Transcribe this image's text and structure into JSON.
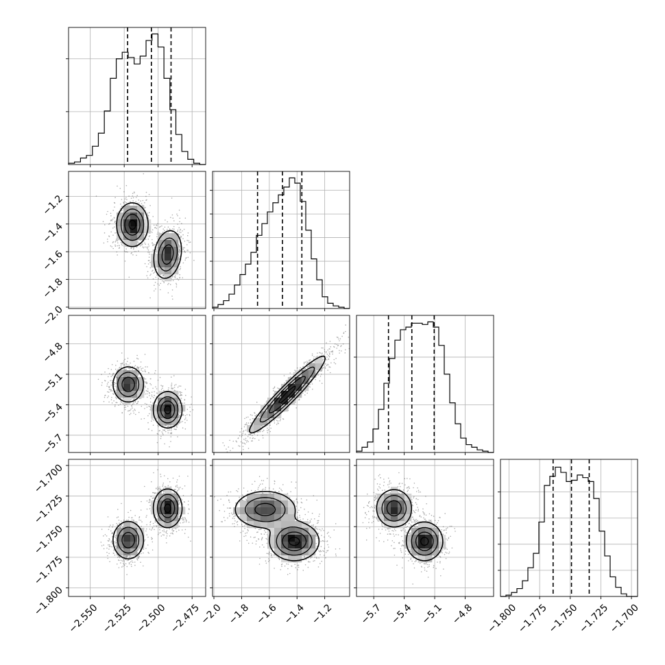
{
  "chart_data": {
    "type": "corner",
    "grid": true,
    "n_params": 4,
    "params": [
      {
        "range": [
          -2.566,
          -2.465
        ],
        "ticks": [
          -2.55,
          -2.525,
          -2.5,
          -2.475
        ],
        "tick_labels": [
          "−2.550",
          "−2.525",
          "−2.500",
          "−2.475"
        ],
        "quantiles": [
          -2.5225,
          -2.505,
          -2.4905
        ],
        "hist": [
          0.01,
          0.02,
          0.05,
          0.07,
          0.14,
          0.24,
          0.41,
          0.66,
          0.81,
          0.86,
          0.82,
          0.77,
          0.83,
          0.95,
          1.0,
          0.9,
          0.66,
          0.42,
          0.23,
          0.1,
          0.04,
          0.01,
          0.0
        ],
        "hist_y_ticks": [
          0.405,
          0.81
        ]
      },
      {
        "range": [
          -2.01,
          -1.02
        ],
        "ticks": [
          -2.0,
          -1.8,
          -1.6,
          -1.4,
          -1.2
        ],
        "tick_labels": [
          "−2.0",
          "−1.8",
          "−1.6",
          "−1.4",
          "−1.2"
        ],
        "quantiles": [
          -1.685,
          -1.505,
          -1.365
        ],
        "hist": [
          0.01,
          0.03,
          0.06,
          0.11,
          0.18,
          0.26,
          0.34,
          0.43,
          0.56,
          0.65,
          0.74,
          0.81,
          0.87,
          0.93,
          1.0,
          0.96,
          0.82,
          0.6,
          0.38,
          0.22,
          0.09,
          0.04,
          0.02,
          0.01,
          0.0
        ],
        "hist_y_ticks": [
          0.181,
          0.362,
          0.543,
          0.724,
          0.905
        ]
      },
      {
        "range": [
          -5.87,
          -4.52
        ],
        "ticks": [
          -5.7,
          -5.4,
          -5.1,
          -4.8
        ],
        "tick_labels": [
          "−5.7",
          "−5.4",
          "−5.1",
          "−4.8"
        ],
        "quantiles": [
          -5.555,
          -5.325,
          -5.105
        ],
        "hist": [
          0.01,
          0.04,
          0.08,
          0.18,
          0.33,
          0.53,
          0.72,
          0.86,
          0.94,
          0.96,
          0.99,
          0.99,
          0.98,
          1.0,
          0.96,
          0.82,
          0.6,
          0.38,
          0.22,
          0.11,
          0.06,
          0.04,
          0.02,
          0.01,
          0.0
        ],
        "hist_y_ticks": [
          0.365,
          0.73
        ]
      },
      {
        "range": [
          -1.807,
          -1.695
        ],
        "ticks": [
          -1.8,
          -1.775,
          -1.75,
          -1.725,
          -1.7
        ],
        "tick_labels": [
          "−1.800",
          "−1.775",
          "−1.750",
          "−1.725",
          "−1.700"
        ],
        "quantiles": [
          -1.764,
          -1.749,
          -1.7345
        ],
        "hist": [
          0.0,
          0.01,
          0.03,
          0.06,
          0.12,
          0.22,
          0.33,
          0.57,
          0.85,
          0.92,
          0.99,
          0.95,
          0.88,
          0.89,
          0.93,
          0.91,
          0.88,
          0.75,
          0.5,
          0.31,
          0.15,
          0.07,
          0.02,
          0.0,
          0.0
        ],
        "hist_y_ticks": [
          0.2,
          0.4,
          0.6,
          0.8
        ]
      }
    ],
    "pairs": [
      {
        "row": 1,
        "col": 0,
        "modes": [
          {
            "x": -2.519,
            "y": -1.405,
            "sx": 0.0055,
            "sy": 0.075,
            "rho": 0.0,
            "w": 1.0
          },
          {
            "x": -2.493,
            "y": -1.62,
            "sx": 0.005,
            "sy": 0.085,
            "rho": 0.2,
            "w": 0.85
          }
        ]
      },
      {
        "row": 2,
        "col": 0,
        "modes": [
          {
            "x": -2.522,
            "y": -5.2,
            "sx": 0.0055,
            "sy": 0.085,
            "rho": 0.0,
            "w": 0.85
          },
          {
            "x": -2.493,
            "y": -5.45,
            "sx": 0.005,
            "sy": 0.085,
            "rho": 0.0,
            "w": 1.0
          }
        ]
      },
      {
        "row": 2,
        "col": 1,
        "modes": [
          {
            "x": -1.47,
            "y": -5.3,
            "sx": 0.13,
            "sy": 0.18,
            "rho": 0.95,
            "w": 1.0
          }
        ]
      },
      {
        "row": 3,
        "col": 0,
        "modes": [
          {
            "x": -2.522,
            "y": -1.761,
            "sx": 0.0055,
            "sy": 0.0075,
            "rho": 0.0,
            "w": 0.85
          },
          {
            "x": -2.493,
            "y": -1.735,
            "sx": 0.005,
            "sy": 0.0075,
            "rho": 0.0,
            "w": 1.0
          }
        ]
      },
      {
        "row": 3,
        "col": 1,
        "modes": [
          {
            "x": -1.63,
            "y": -1.736,
            "sx": 0.11,
            "sy": 0.0075,
            "rho": 0.0,
            "w": 0.75
          },
          {
            "x": -1.42,
            "y": -1.762,
            "sx": 0.085,
            "sy": 0.0075,
            "rho": 0.0,
            "w": 1.0
          }
        ]
      },
      {
        "row": 3,
        "col": 2,
        "modes": [
          {
            "x": -5.5,
            "y": -1.735,
            "sx": 0.085,
            "sy": 0.0075,
            "rho": 0.0,
            "w": 0.85
          },
          {
            "x": -5.2,
            "y": -1.762,
            "sx": 0.085,
            "sy": 0.0075,
            "rho": 0.0,
            "w": 1.0
          }
        ]
      }
    ],
    "contour_levels": [
      0.9,
      0.6,
      0.32,
      0.11
    ],
    "quantile_style": "dashed",
    "hist_style": "step"
  }
}
